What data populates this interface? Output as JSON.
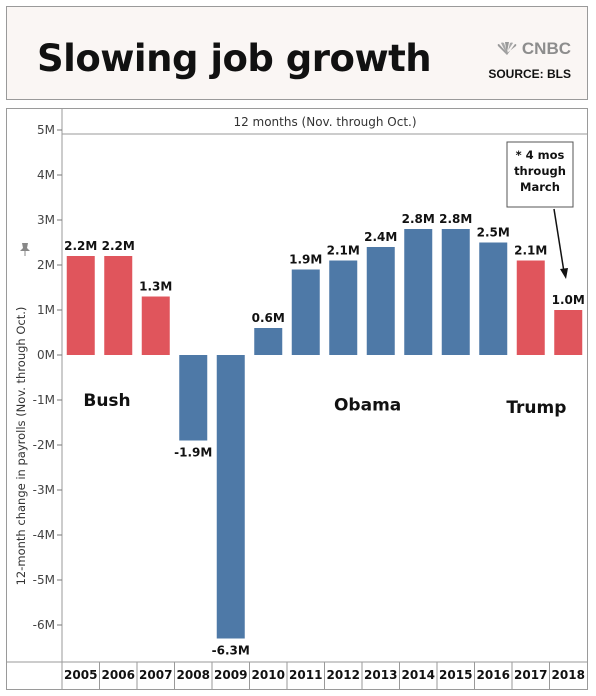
{
  "header": {
    "title": "Slowing job growth",
    "brand": "CNBC",
    "source": "SOURCE: BLS"
  },
  "colors": {
    "republican": "#e0555c",
    "democrat": "#4e79a7"
  },
  "chart_data": {
    "type": "bar",
    "title": "",
    "panel_header": "12 months (Nov. through Oct.)",
    "ylabel": "12-month change in payrolls (Nov. through Oct.)",
    "xlabel": "",
    "ylim": [
      -6.6,
      5.2
    ],
    "yticks": [
      5,
      4,
      3,
      2,
      1,
      0,
      -1,
      -2,
      -3,
      -4,
      -5,
      -6
    ],
    "ytick_labels": [
      "5M",
      "4M",
      "3M",
      "2M",
      "1M",
      "0M",
      "-1M",
      "-2M",
      "-3M",
      "-4M",
      "-5M",
      "-6M"
    ],
    "grid": false,
    "categories": [
      "2005",
      "2006",
      "2007",
      "2008",
      "2009",
      "2010",
      "2011",
      "2012",
      "2013",
      "2014",
      "2015",
      "2016",
      "2017",
      "2018"
    ],
    "values": [
      2.2,
      2.2,
      1.3,
      -1.9,
      -6.3,
      0.6,
      1.9,
      2.1,
      2.4,
      2.8,
      2.8,
      2.5,
      2.1,
      1.0
    ],
    "value_labels": [
      "2.2M",
      "2.2M",
      "1.3M",
      "-1.9M",
      "-6.3M",
      "0.6M",
      "1.9M",
      "2.1M",
      "2.4M",
      "2.8M",
      "2.8M",
      "2.5M",
      "2.1M",
      "1.0M"
    ],
    "bar_colors": [
      "republican",
      "republican",
      "republican",
      "democrat",
      "democrat",
      "democrat",
      "democrat",
      "democrat",
      "democrat",
      "democrat",
      "democrat",
      "democrat",
      "republican",
      "republican"
    ],
    "annotations": [
      {
        "text": "Bush",
        "value": -1.0
      },
      {
        "text": "Obama",
        "value": -1.1
      },
      {
        "text": "Trump",
        "value": -1.15
      },
      {
        "text": "* 4 mos\nthrough\nMarch"
      }
    ]
  }
}
